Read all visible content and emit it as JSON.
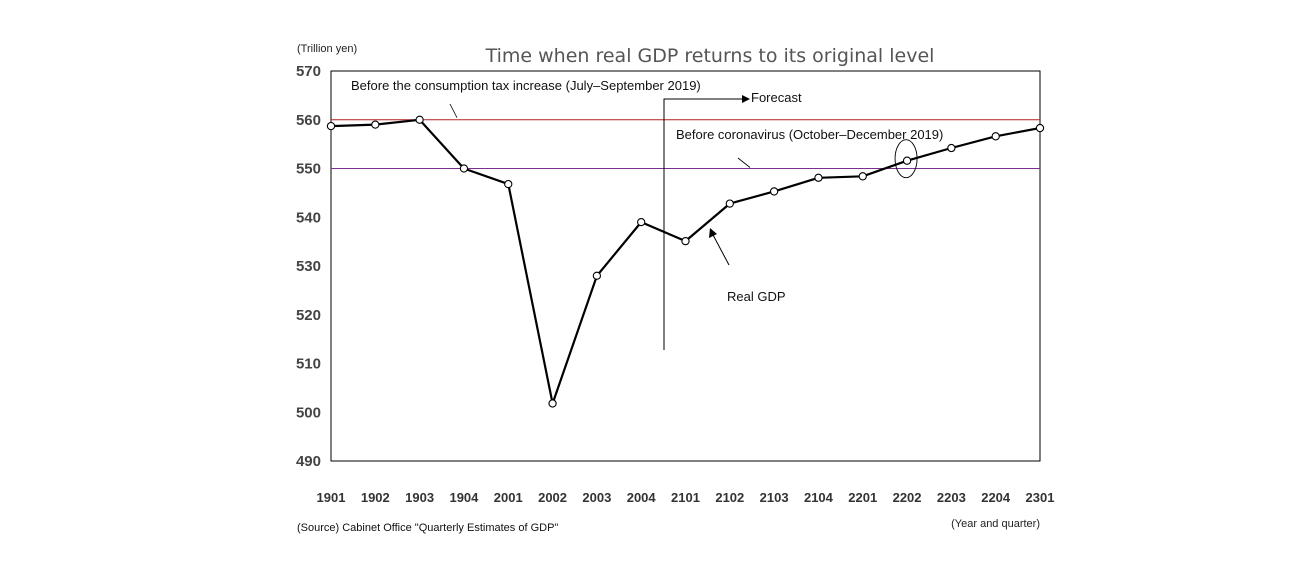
{
  "chart_data": {
    "type": "line",
    "title": "Time when real GDP returns to its original level",
    "ylabel": "(Trillion yen)",
    "xlabel": "(Year and quarter)",
    "ylim": [
      490,
      570
    ],
    "yticks": [
      490,
      500,
      510,
      520,
      530,
      540,
      550,
      560,
      570
    ],
    "categories": [
      "1901",
      "1902",
      "1903",
      "1904",
      "2001",
      "2002",
      "2003",
      "2004",
      "2101",
      "2102",
      "2103",
      "2104",
      "2201",
      "2202",
      "2203",
      "2204",
      "2301"
    ],
    "series": [
      {
        "name": "Real GDP",
        "color": "#000000",
        "values": [
          558.7,
          559.0,
          560.0,
          550.0,
          546.8,
          501.8,
          528.0,
          539.0,
          535.1,
          542.8,
          545.3,
          548.1,
          548.4,
          551.6,
          554.2,
          556.6,
          558.3
        ]
      }
    ],
    "reference_lines": [
      {
        "label": "Before the consumption tax increase (July–September 2019)",
        "value": 560.0,
        "color": "#b22222"
      },
      {
        "label": "Before coronavirus (October–December 2019)",
        "value": 550.0,
        "color": "#7b2e8e"
      }
    ],
    "annotations": {
      "forecast": "Forecast",
      "forecast_start_after": "2004",
      "series_label": "Real GDP",
      "highlight_category": "2202"
    },
    "source": "(Source) Cabinet Office \"Quarterly Estimates of GDP\""
  }
}
